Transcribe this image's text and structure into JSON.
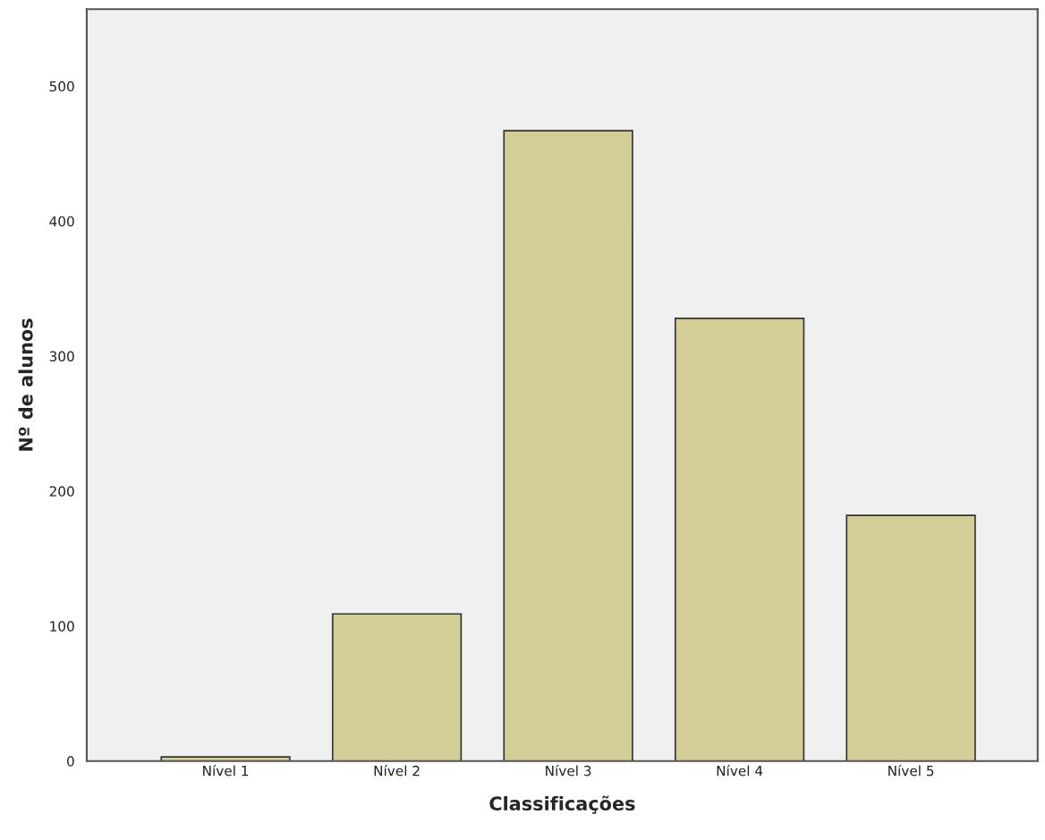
{
  "chart_data": {
    "type": "bar",
    "categories": [
      "Nível 1",
      "Nível 2",
      "Nível 3",
      "Nível 4",
      "Nível 5"
    ],
    "values": [
      3,
      109,
      467,
      328,
      182
    ],
    "color": "#d3ce97",
    "xlabel": "Classificações",
    "ylabel": "Nº de alunos",
    "ylim": [
      0,
      557
    ],
    "yticks": [
      0,
      100,
      200,
      300,
      400,
      500
    ],
    "grid": false,
    "legend": false
  }
}
